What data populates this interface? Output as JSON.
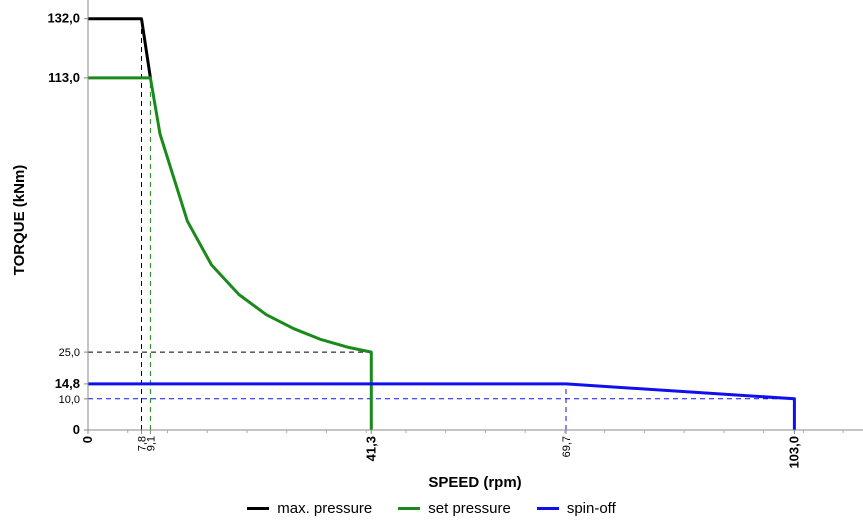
{
  "chart_data": {
    "type": "line",
    "xlabel": "SPEED (rpm)",
    "ylabel": "TORQUE (kNm)",
    "xlim": [
      0,
      113
    ],
    "ylim": [
      0,
      138
    ],
    "x_ticks": [
      {
        "value": 0,
        "label": "0",
        "style": "bold"
      },
      {
        "value": 7.8,
        "label": "7,8",
        "style": "small"
      },
      {
        "value": 9.1,
        "label": "9,1",
        "style": "small"
      },
      {
        "value": 41.3,
        "label": "41,3",
        "style": "bold"
      },
      {
        "value": 69.7,
        "label": "69,7",
        "style": "small"
      },
      {
        "value": 103.0,
        "label": "103,0",
        "style": "bold"
      }
    ],
    "y_ticks": [
      {
        "value": 0,
        "label": "0",
        "style": "bold"
      },
      {
        "value": 10.0,
        "label": "10,0",
        "style": "small"
      },
      {
        "value": 14.8,
        "label": "14,8",
        "style": "bold"
      },
      {
        "value": 25.0,
        "label": "25,0",
        "style": "small"
      },
      {
        "value": 113.0,
        "label": "113,0",
        "style": "bold"
      },
      {
        "value": 132.0,
        "label": "132,0",
        "style": "bold"
      }
    ],
    "series": [
      {
        "name": "max. pressure",
        "color": "#000000",
        "points": [
          [
            0,
            132.0
          ],
          [
            7.8,
            132.0
          ],
          [
            9.1,
            113.0
          ]
        ]
      },
      {
        "name": "set pressure",
        "color": "#1a8a1a",
        "points": [
          [
            0,
            113.0
          ],
          [
            9.1,
            113.0
          ],
          [
            10.5,
            95.0
          ],
          [
            14.5,
            67.0
          ],
          [
            18.0,
            53.0
          ],
          [
            22.0,
            43.5
          ],
          [
            26.0,
            37.0
          ],
          [
            30.0,
            32.5
          ],
          [
            34.0,
            29.0
          ],
          [
            38.0,
            26.5
          ],
          [
            41.3,
            25.0
          ],
          [
            41.3,
            0
          ]
        ]
      },
      {
        "name": "spin-off",
        "color": "#1010ee",
        "points": [
          [
            0,
            14.8
          ],
          [
            69.7,
            14.8
          ],
          [
            103.0,
            10.0
          ],
          [
            103.0,
            0
          ]
        ]
      }
    ],
    "reference_lines": [
      {
        "color": "#000000",
        "points": [
          [
            7.8,
            0
          ],
          [
            7.8,
            132.0
          ]
        ]
      },
      {
        "color": "#1a8a1a",
        "points": [
          [
            9.1,
            0
          ],
          [
            9.1,
            113.0
          ]
        ]
      },
      {
        "color": "#000000",
        "points": [
          [
            0,
            25.0
          ],
          [
            41.3,
            25.0
          ]
        ]
      },
      {
        "color": "#1010ee",
        "points": [
          [
            0,
            10.0
          ],
          [
            103.0,
            10.0
          ]
        ]
      },
      {
        "color": "#1010ee",
        "points": [
          [
            69.7,
            0
          ],
          [
            69.7,
            14.8
          ]
        ]
      }
    ],
    "grid": false,
    "legend_position": "bottom-center"
  }
}
